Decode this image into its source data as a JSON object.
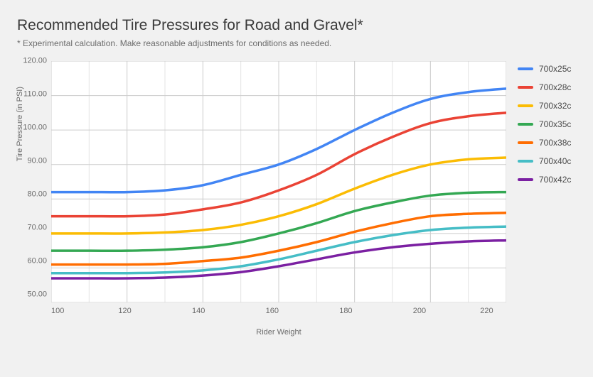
{
  "title": "Recommended Tire Pressures for Road and Gravel*",
  "subtitle": "* Experimental calculation. Make reasonable adjustments for conditions as needed.",
  "background_color": "#f1f1f1",
  "plot_background": "#ffffff",
  "grid_color": "#cccccc",
  "grid_minor_color": "#e3e3e3",
  "text_color": "#6b6b6b",
  "chart": {
    "type": "line",
    "x_label": "Rider Weight",
    "y_label": "Tire Pressure (in PSI)",
    "xlim": [
      100,
      220
    ],
    "ylim": [
      50,
      120
    ],
    "xtick_step": 20,
    "ytick_step": 10,
    "xticks": [
      "100",
      "120",
      "140",
      "160",
      "180",
      "200",
      "220"
    ],
    "yticks": [
      "120.00",
      "110.00",
      "100.00",
      "90.00",
      "80.00",
      "70.00",
      "60.00",
      "50.00"
    ],
    "line_width": 3.5,
    "label_fontsize": 11,
    "tick_fontsize": 11,
    "legend_fontsize": 12,
    "x_values": [
      100,
      110,
      120,
      130,
      140,
      150,
      160,
      170,
      180,
      190,
      200,
      210,
      220
    ],
    "series": [
      {
        "name": "700x25c",
        "color": "#4285f4",
        "y": [
          82,
          82,
          82,
          82.5,
          84,
          87,
          90,
          94.5,
          100,
          105,
          109,
          111,
          112
        ]
      },
      {
        "name": "700x28c",
        "color": "#ea4335",
        "y": [
          75,
          75,
          75,
          75.5,
          77,
          79,
          82.5,
          87,
          93,
          98,
          102,
          104,
          105
        ]
      },
      {
        "name": "700x32c",
        "color": "#fbbc04",
        "y": [
          70,
          70,
          70,
          70.3,
          71,
          72.5,
          75,
          78.5,
          83,
          87,
          90,
          91.5,
          92
        ]
      },
      {
        "name": "700x35c",
        "color": "#34a853",
        "y": [
          65,
          65,
          65,
          65.3,
          66,
          67.5,
          70,
          73,
          76.5,
          79,
          81,
          81.8,
          82
        ]
      },
      {
        "name": "700x38c",
        "color": "#ff6d01",
        "y": [
          61,
          61,
          61,
          61.2,
          62,
          63,
          65,
          67.5,
          70.5,
          73,
          75,
          75.7,
          76
        ]
      },
      {
        "name": "700x40c",
        "color": "#46bdc6",
        "y": [
          58.5,
          58.5,
          58.5,
          58.7,
          59.3,
          60.5,
          62.5,
          65,
          67.5,
          69.5,
          71,
          71.7,
          72
        ]
      },
      {
        "name": "700x42c",
        "color": "#7b20a2",
        "y": [
          57,
          57,
          57,
          57.2,
          57.8,
          58.8,
          60.5,
          62.5,
          64.5,
          66,
          67,
          67.7,
          68
        ]
      }
    ]
  }
}
